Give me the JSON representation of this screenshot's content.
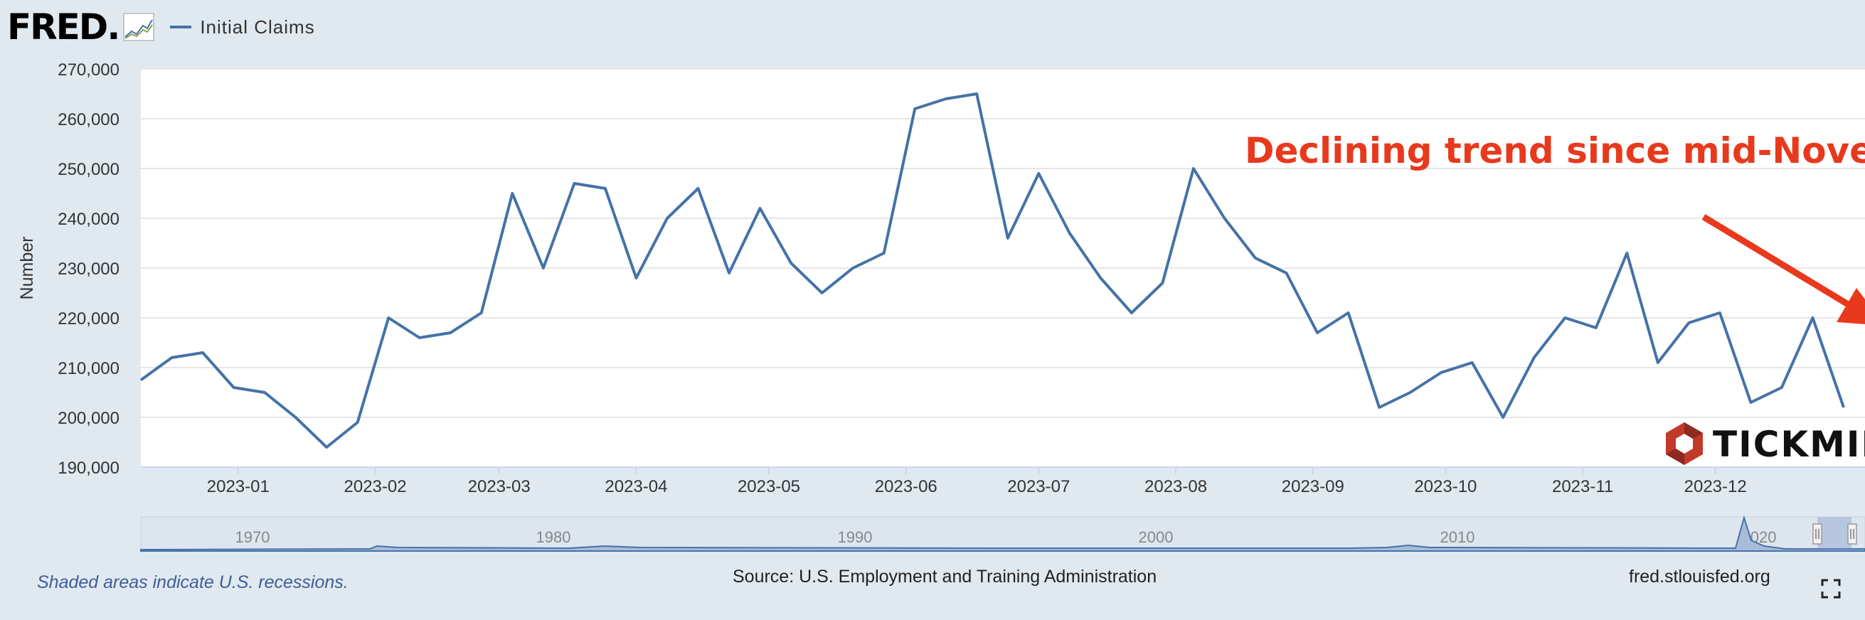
{
  "header": {
    "logo_text": "FRED",
    "logo_dot": ".",
    "legend_label": "Initial Claims"
  },
  "footer": {
    "recession_note": "Shaded areas indicate U.S. recessions.",
    "source": "Source: U.S. Employment and Training Administration",
    "url": "fred.stlouisfed.org"
  },
  "annotation": {
    "text": "Declining trend since mid-November",
    "color": "#e8391d"
  },
  "watermark": {
    "text": "TICKMILL",
    "color": "#c0392b"
  },
  "colors": {
    "series": "#4572a7",
    "background": "#e1e9f0",
    "plot_bg": "#ffffff"
  },
  "chart_data": {
    "type": "line",
    "title": "",
    "xlabel": "",
    "ylabel": "Number",
    "ylim": [
      190000,
      270000
    ],
    "yticks": [
      190000,
      200000,
      210000,
      220000,
      230000,
      240000,
      250000,
      260000,
      270000
    ],
    "ytick_labels": [
      "190,000",
      "200,000",
      "210,000",
      "220,000",
      "230,000",
      "240,000",
      "250,000",
      "260,000",
      "270,000"
    ],
    "xlim": [
      "2022-12-10",
      "2023-12-30"
    ],
    "xticks": [
      "2023-01-01",
      "2023-02-01",
      "2023-03-01",
      "2023-04-01",
      "2023-05-01",
      "2023-06-01",
      "2023-07-01",
      "2023-08-01",
      "2023-09-01",
      "2023-10-01",
      "2023-11-01",
      "2023-12-01"
    ],
    "xtick_labels": [
      "2023-01",
      "2023-02",
      "2023-03",
      "2023-04",
      "2023-05",
      "2023-06",
      "2023-07",
      "2023-08",
      "2023-09",
      "2023-10",
      "2023-11",
      "2023-12"
    ],
    "grid": true,
    "legend": "top-left",
    "series": [
      {
        "name": "Initial Claims",
        "x": [
          "2022-12-10",
          "2022-12-17",
          "2022-12-24",
          "2022-12-31",
          "2023-01-07",
          "2023-01-14",
          "2023-01-21",
          "2023-01-28",
          "2023-02-04",
          "2023-02-11",
          "2023-02-18",
          "2023-02-25",
          "2023-03-04",
          "2023-03-11",
          "2023-03-18",
          "2023-03-25",
          "2023-04-01",
          "2023-04-08",
          "2023-04-15",
          "2023-04-22",
          "2023-04-29",
          "2023-05-06",
          "2023-05-13",
          "2023-05-20",
          "2023-05-27",
          "2023-06-03",
          "2023-06-10",
          "2023-06-17",
          "2023-06-24",
          "2023-07-01",
          "2023-07-08",
          "2023-07-15",
          "2023-07-22",
          "2023-07-29",
          "2023-08-05",
          "2023-08-12",
          "2023-08-19",
          "2023-08-26",
          "2023-09-02",
          "2023-09-09",
          "2023-09-16",
          "2023-09-23",
          "2023-09-30",
          "2023-10-07",
          "2023-10-14",
          "2023-10-21",
          "2023-10-28",
          "2023-11-04",
          "2023-11-11",
          "2023-11-18",
          "2023-11-25",
          "2023-12-02",
          "2023-12-09",
          "2023-12-16",
          "2023-12-23",
          "2023-12-30"
        ],
        "values": [
          207500,
          212000,
          213000,
          206000,
          205000,
          200000,
          194000,
          199000,
          220000,
          216000,
          217000,
          221000,
          245000,
          230000,
          247000,
          246000,
          228000,
          240000,
          246000,
          229000,
          242000,
          231000,
          225000,
          230000,
          233000,
          262000,
          264000,
          265000,
          236000,
          249000,
          237000,
          228000,
          221000,
          227000,
          250000,
          240000,
          232000,
          229000,
          217000,
          221000,
          202000,
          205000,
          209000,
          211000,
          200000,
          212000,
          220000,
          218000,
          233000,
          211000,
          219000,
          221000,
          203000,
          206000,
          220000,
          202000
        ]
      }
    ],
    "navigator": {
      "labels": [
        "1970",
        "1980",
        "1990",
        "2000",
        "2010",
        "2020"
      ]
    }
  }
}
